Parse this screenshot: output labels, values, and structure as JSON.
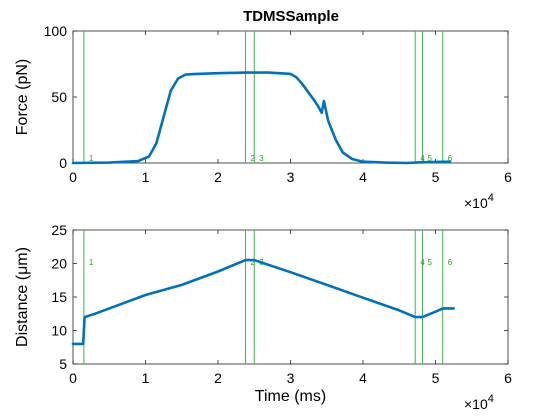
{
  "figure": {
    "title": "TDMSSample",
    "colors": {
      "trace": "#0072BD",
      "marker_line": "#3fb34f",
      "marker_label": "#2ca02c",
      "axis": "#262626",
      "background": "#ffffff"
    }
  },
  "chart_data": [
    {
      "type": "line",
      "title": "TDMSSample",
      "xlabel": "",
      "ylabel": "Force (pN)",
      "xlim": [
        0,
        60000
      ],
      "ylim": [
        0,
        100
      ],
      "xticks": [
        0,
        1,
        2,
        3,
        4,
        5,
        6
      ],
      "yticks": [
        0,
        50,
        100
      ],
      "x_exponent_label": "×10^4",
      "grid": false,
      "series": [
        {
          "x": [
            0,
            5000,
            9000,
            10500,
            11500,
            12500,
            13500,
            14500,
            15500,
            17000,
            20000,
            24000,
            27000,
            30000,
            30800,
            31600,
            32400,
            33200,
            33800,
            34300,
            34600,
            35200,
            36200,
            37200,
            38500,
            40000,
            43000,
            46000,
            48000,
            50000,
            52000
          ],
          "y": [
            0,
            0.3,
            1.5,
            5,
            15,
            35,
            55,
            64,
            67,
            67.5,
            68,
            68.5,
            68.5,
            67.5,
            65,
            60,
            54,
            48,
            43,
            38,
            47,
            32,
            18,
            8,
            3,
            1,
            0.3,
            0,
            0.5,
            0.8,
            1
          ]
        }
      ],
      "markers": [
        {
          "label": "1",
          "x": 1500
        },
        {
          "label": "2",
          "x": 23800
        },
        {
          "label": "3",
          "x": 25000
        },
        {
          "label": "4",
          "x": 47200
        },
        {
          "label": "5",
          "x": 48200
        },
        {
          "label": "6",
          "x": 51000
        }
      ]
    },
    {
      "type": "line",
      "title": "",
      "xlabel": "Time (ms)",
      "ylabel": "Distance (μm)",
      "xlim": [
        0,
        60000
      ],
      "ylim": [
        5,
        25
      ],
      "xticks": [
        0,
        1,
        2,
        3,
        4,
        5,
        6
      ],
      "yticks": [
        5,
        10,
        15,
        20,
        25
      ],
      "x_exponent_label": "×10^4",
      "grid": false,
      "series": [
        {
          "x": [
            0,
            1000,
            1400,
            1600,
            3000,
            10000,
            15000,
            20000,
            23800,
            25000,
            30000,
            35000,
            40000,
            45000,
            47200,
            48200,
            50000,
            51000,
            52500
          ],
          "y": [
            8,
            8,
            8,
            12,
            12.5,
            15.3,
            16.8,
            18.8,
            20.5,
            20.5,
            18.7,
            16.8,
            14.9,
            13,
            12,
            12,
            12.8,
            13.3,
            13.3
          ]
        }
      ],
      "markers": [
        {
          "label": "1",
          "x": 1500
        },
        {
          "label": "2",
          "x": 23800
        },
        {
          "label": "3",
          "x": 25000
        },
        {
          "label": "4",
          "x": 47200
        },
        {
          "label": "5",
          "x": 48200
        },
        {
          "label": "6",
          "x": 51000
        }
      ]
    }
  ]
}
